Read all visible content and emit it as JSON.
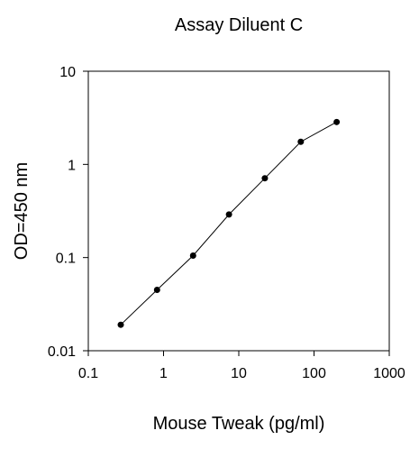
{
  "chart_data": {
    "type": "line",
    "title": "Assay Diluent C",
    "xlabel": "Mouse Tweak (pg/ml)",
    "ylabel": "OD=450 nm",
    "x_scale": "log",
    "y_scale": "log",
    "xlim": [
      0.1,
      1000
    ],
    "ylim": [
      0.01,
      10
    ],
    "x_ticks": [
      0.1,
      1,
      10,
      100,
      1000
    ],
    "x_tick_labels": [
      "0.1",
      "1",
      "10",
      "100",
      "1000"
    ],
    "y_ticks": [
      0.01,
      0.1,
      1,
      10
    ],
    "y_tick_labels": [
      "0.01",
      "0.1",
      "1",
      "10"
    ],
    "grid": false,
    "legend": false,
    "series": [
      {
        "x": [
          0.27,
          0.82,
          2.47,
          7.41,
          22.2,
          66.7,
          200
        ],
        "y": [
          0.019,
          0.045,
          0.105,
          0.29,
          0.71,
          1.75,
          2.85
        ]
      }
    ],
    "colors": {
      "line": "#000000",
      "marker": "#000000",
      "axis": "#000000"
    }
  }
}
